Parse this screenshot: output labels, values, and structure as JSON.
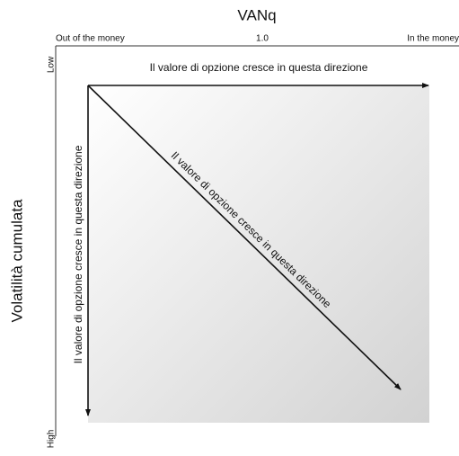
{
  "header": {
    "title": "VANq"
  },
  "top_axis": {
    "left": "Out of the money",
    "center": "1.0",
    "right": "In the money"
  },
  "left_axis": {
    "title": "Volatilità cumulata",
    "top": "Low",
    "bottom": "High"
  },
  "arrows": {
    "horizontal": "Il valore di opzione cresce in questa direzione",
    "vertical": "Il valore di opzione cresce in questa direzione",
    "diagonal": "Il valore di opzione cresce in questa direzione"
  }
}
